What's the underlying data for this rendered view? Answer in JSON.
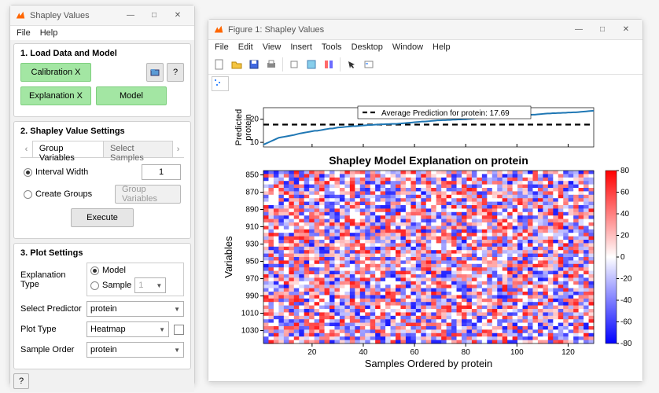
{
  "settings_window": {
    "title": "Shapley Values",
    "menu": [
      "File",
      "Help"
    ],
    "panel1": {
      "title": "1. Load Data and Model",
      "calibration_btn": "Calibration X",
      "explanation_btn": "Explanation X",
      "model_btn": "Model",
      "info_btn": "?",
      "browse_btn": "📁"
    },
    "panel2": {
      "title": "2. Shapley Value Settings",
      "tab1": "Group Variables",
      "tab2": "Select Samples",
      "interval_label": "Interval Width",
      "interval_value": "1",
      "create_groups_label": "Create Groups",
      "group_vars_btn": "Group Variables",
      "execute_btn": "Execute"
    },
    "panel3": {
      "title": "3. Plot Settings",
      "exp_type_label": "Explanation Type",
      "exp_model": "Model",
      "exp_sample": "Sample",
      "sample_num": "1",
      "select_pred_label": "Select Predictor",
      "select_pred_val": "protein",
      "plot_type_label": "Plot Type",
      "plot_type_val": "Heatmap",
      "sample_order_label": "Sample Order",
      "sample_order_val": "protein"
    }
  },
  "figure_window": {
    "title": "Figure 1: Shapley Values",
    "menu": [
      "File",
      "Edit",
      "View",
      "Insert",
      "Tools",
      "Desktop",
      "Window",
      "Help"
    ],
    "linechart": {
      "ylabel": "Predicted\nprotein",
      "legend": "Average Prediction for protein: 17.69",
      "avg_y": 17.69,
      "yticks": [
        10,
        20
      ],
      "xrange": [
        1,
        130
      ],
      "line_color": "#1f77b4",
      "dash_color": "#000000",
      "points": [
        9,
        9.5,
        10,
        10.5,
        11,
        11.5,
        12,
        12.2,
        12.4,
        12.6,
        12.8,
        13,
        13.2,
        13.5,
        13.8,
        14,
        14.2,
        14.4,
        14.6,
        14.8,
        15,
        15,
        15.2,
        15.4,
        15.6,
        15.8,
        16,
        16,
        16.2,
        16.4,
        16.5,
        16.6,
        16.7,
        16.8,
        16.9,
        17,
        17,
        17.1,
        17.2,
        17.3,
        17.4,
        17.5,
        17.5,
        17.6,
        17.7,
        17.7,
        17.8,
        17.8,
        17.9,
        17.9,
        18,
        18,
        18,
        18.1,
        18.2,
        18.3,
        18.4,
        18.5,
        18.6,
        18.7,
        18.8,
        18.9,
        19,
        19,
        19.1,
        19.2,
        19.3,
        19.4,
        19.5,
        19.5,
        19.6,
        19.6,
        19.7,
        19.7,
        19.8,
        19.8,
        19.9,
        19.9,
        20,
        20,
        20.1,
        20.2,
        20.3,
        20.4,
        20.5,
        20.5,
        20.6,
        20.6,
        20.7,
        20.7,
        20.8,
        20.8,
        20.9,
        20.9,
        21,
        21,
        21.1,
        21.2,
        21.3,
        21.4,
        21.5,
        21.6,
        21.7,
        21.8,
        21.9,
        22,
        22,
        22.1,
        22.2,
        22.3,
        22.4,
        22.5,
        22.5,
        22.6,
        22.6,
        22.7,
        22.7,
        22.8,
        22.8,
        22.9,
        22.9,
        23,
        23,
        23.1,
        23.2,
        23.3,
        23.4,
        23.5,
        23.6,
        23.7
      ]
    },
    "heatmap": {
      "title": "Shapley Model Explanation on protein",
      "ylabel": "Variables",
      "xlabel": "Samples Ordered by protein",
      "yticks": [
        850,
        870,
        890,
        910,
        930,
        950,
        970,
        990,
        1010,
        1030
      ],
      "xticks": [
        20,
        40,
        60,
        80,
        100,
        120
      ],
      "xrange": [
        1,
        130
      ],
      "yrange": [
        845,
        1045
      ],
      "colorbar_ticks": [
        80,
        60,
        40,
        20,
        0,
        -20,
        -40,
        -60,
        -80
      ],
      "colorbar_range": [
        -80,
        80
      ],
      "title_fontsize": 14
    }
  }
}
